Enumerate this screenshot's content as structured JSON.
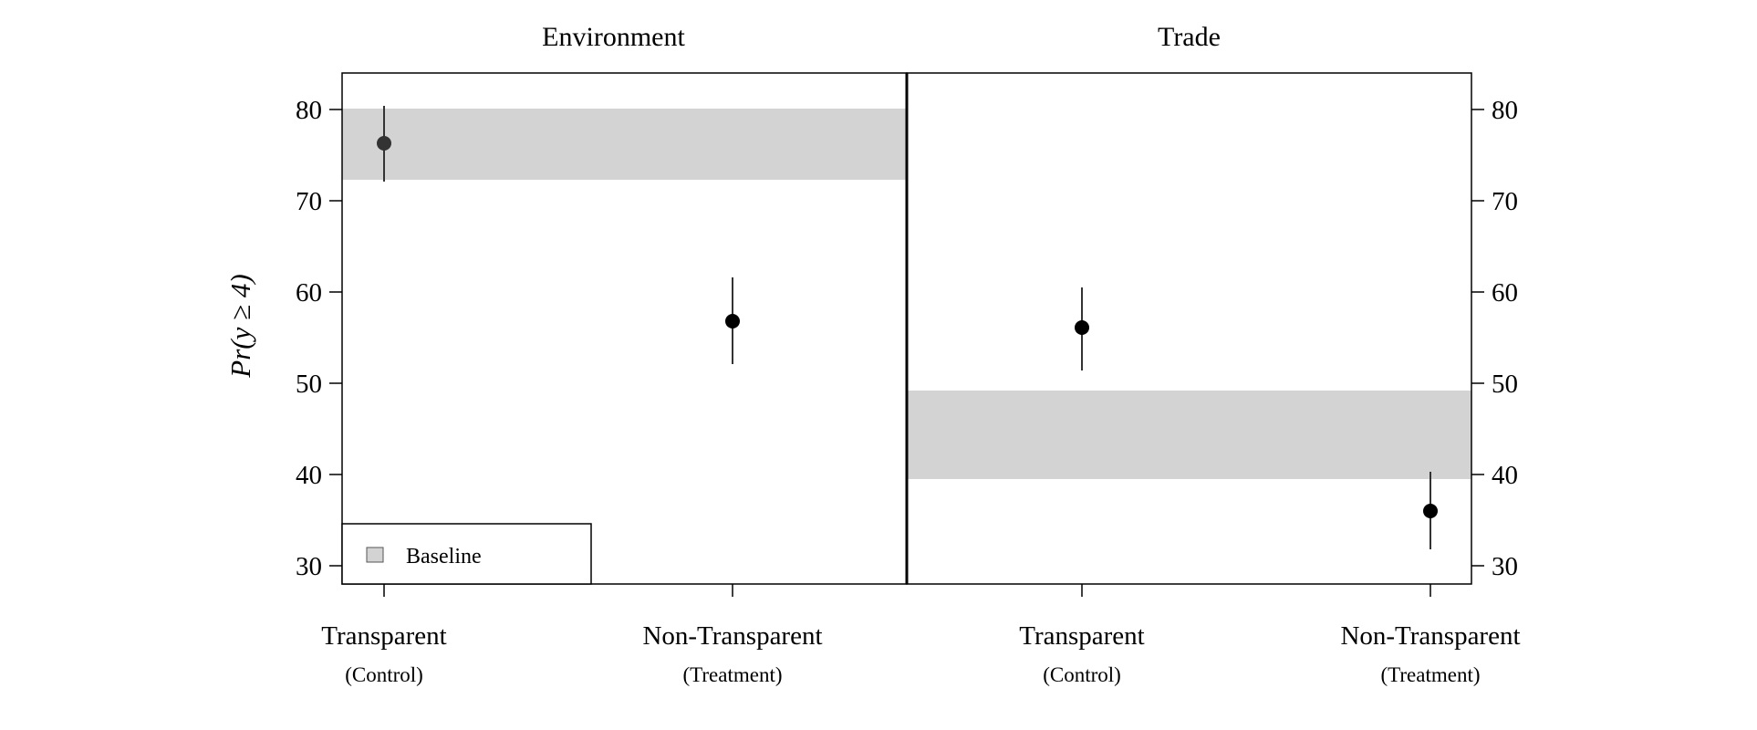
{
  "chart_data": {
    "type": "scatter",
    "subtype": "point-with-error-bars",
    "ylabel": "Pr(y ≥ 4)",
    "ylim": [
      28,
      84
    ],
    "yticks": [
      30,
      40,
      50,
      60,
      70,
      80
    ],
    "legend": {
      "label": "Baseline",
      "position": "bottom-left"
    },
    "panels": [
      {
        "title": "Environment",
        "baseline": {
          "low": 72.3,
          "high": 80.1
        },
        "points": [
          {
            "category": "Transparent",
            "sublabel": "(Control)",
            "value": 76.3,
            "ci_low": 72.1,
            "ci_high": 80.4,
            "color": "#333333"
          },
          {
            "category": "Non-Transparent",
            "sublabel": "(Treatment)",
            "value": 56.8,
            "ci_low": 52.1,
            "ci_high": 61.6,
            "color": "#000000"
          }
        ]
      },
      {
        "title": "Trade",
        "baseline": {
          "low": 39.5,
          "high": 49.2
        },
        "points": [
          {
            "category": "Transparent",
            "sublabel": "(Control)",
            "value": 56.1,
            "ci_low": 51.4,
            "ci_high": 60.5,
            "color": "#000000"
          },
          {
            "category": "Non-Transparent",
            "sublabel": "(Treatment)",
            "value": 36.0,
            "ci_low": 31.8,
            "ci_high": 40.3,
            "color": "#000000"
          }
        ]
      }
    ]
  },
  "colors": {
    "baseline_band": "#d3d3d3",
    "axis": "#000000",
    "errorbar": "#333333"
  }
}
